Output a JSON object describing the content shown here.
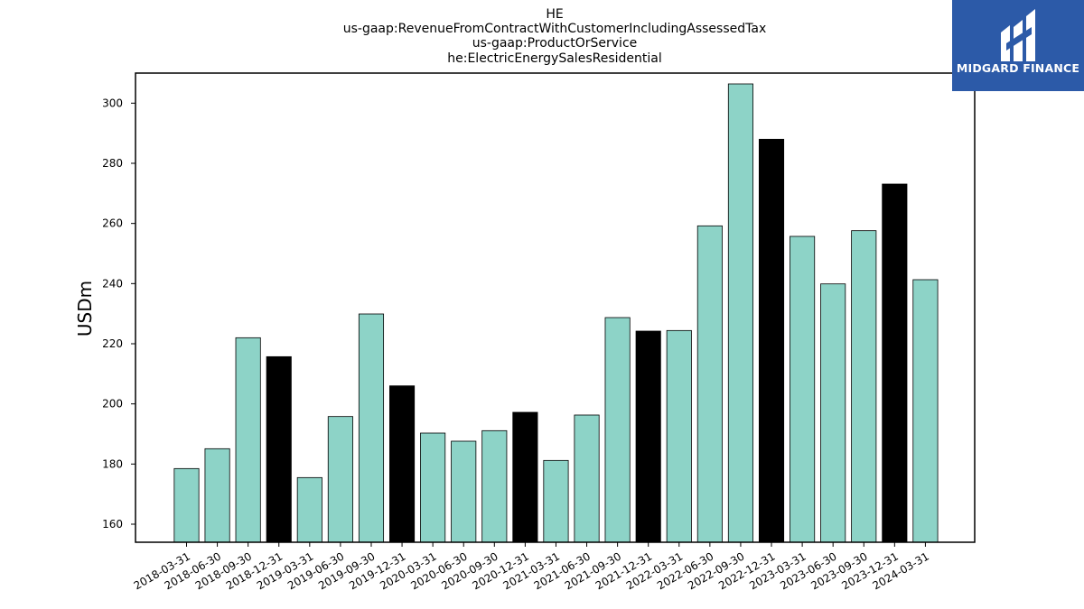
{
  "logo": {
    "text": "MIDGARD FINANCE",
    "background": "#2c5aa8"
  },
  "chart_data": {
    "type": "bar",
    "title_lines": [
      "HE",
      "us-gaap:RevenueFromContractWithCustomerIncludingAssessedTax",
      "us-gaap:ProductOrService",
      "he:ElectricEnergySalesResidential"
    ],
    "xlabel": "",
    "ylabel": "USDm",
    "ylim": [
      154,
      310
    ],
    "yticks": [
      160,
      180,
      200,
      220,
      240,
      260,
      280,
      300
    ],
    "grid": false,
    "legend": "none",
    "colors": {
      "quarter": "#8dd3c7",
      "q4": "#000000",
      "edge": "#000000"
    },
    "categories": [
      "2018-03-31",
      "2018-06-30",
      "2018-09-30",
      "2018-12-31",
      "2019-03-31",
      "2019-06-30",
      "2019-09-30",
      "2019-12-31",
      "2020-03-31",
      "2020-06-30",
      "2020-09-30",
      "2020-12-31",
      "2021-03-31",
      "2021-06-30",
      "2021-09-30",
      "2021-12-31",
      "2022-03-31",
      "2022-06-30",
      "2022-09-30",
      "2022-12-31",
      "2023-03-31",
      "2023-06-30",
      "2023-09-30",
      "2023-12-31",
      "2024-03-31"
    ],
    "values": [
      178.5,
      185.1,
      222.0,
      215.7,
      175.5,
      195.8,
      229.9,
      206.0,
      190.3,
      187.6,
      191.1,
      197.2,
      181.2,
      196.3,
      228.7,
      224.2,
      224.4,
      259.2,
      306.4,
      288.0,
      255.7,
      239.9,
      257.6,
      273.1,
      241.3
    ],
    "highlight": [
      false,
      false,
      false,
      true,
      false,
      false,
      false,
      true,
      false,
      false,
      false,
      true,
      false,
      false,
      false,
      true,
      false,
      false,
      false,
      true,
      false,
      false,
      false,
      true,
      false
    ]
  }
}
